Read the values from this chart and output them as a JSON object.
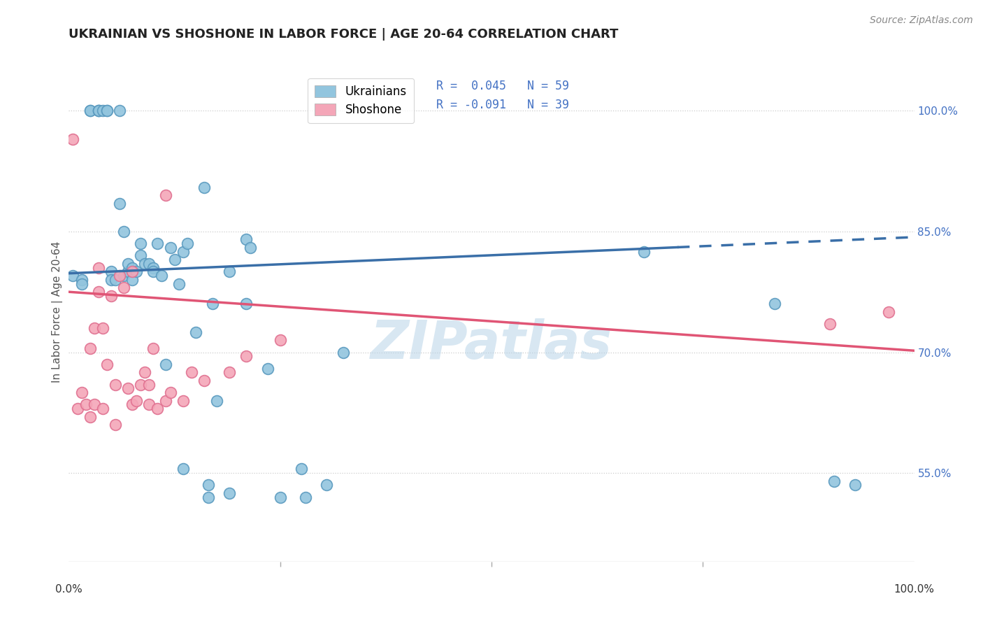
{
  "title": "UKRAINIAN VS SHOSHONE IN LABOR FORCE | AGE 20-64 CORRELATION CHART",
  "source": "Source: ZipAtlas.com",
  "ylabel": "In Labor Force | Age 20-64",
  "yticks": [
    55.0,
    70.0,
    85.0,
    100.0
  ],
  "ytick_labels": [
    "55.0%",
    "70.0%",
    "85.0%",
    "100.0%"
  ],
  "blue_color": "#92c5de",
  "pink_color": "#f4a6b8",
  "blue_edge_color": "#5a9abf",
  "pink_edge_color": "#e07090",
  "blue_line_color": "#3a6fa8",
  "pink_line_color": "#e05575",
  "watermark": "ZIPatlas",
  "blue_scatter_x": [
    0.5,
    1.5,
    1.5,
    2.5,
    2.5,
    3.5,
    3.5,
    3.5,
    4.0,
    4.5,
    4.5,
    5.0,
    5.0,
    5.5,
    6.0,
    6.0,
    6.5,
    6.5,
    7.0,
    7.0,
    7.5,
    7.5,
    8.0,
    8.5,
    8.5,
    9.0,
    9.5,
    10.0,
    10.0,
    10.5,
    11.0,
    11.5,
    12.0,
    12.5,
    13.0,
    13.5,
    13.5,
    14.0,
    15.0,
    16.0,
    16.5,
    16.5,
    17.0,
    17.5,
    19.0,
    19.0,
    21.0,
    21.0,
    21.5,
    23.5,
    25.0,
    27.5,
    28.0,
    30.5,
    32.5,
    68.0,
    83.5,
    90.5,
    93.0
  ],
  "blue_scatter_y": [
    79.5,
    79.0,
    78.5,
    100.0,
    100.0,
    100.0,
    100.0,
    100.0,
    100.0,
    100.0,
    100.0,
    80.0,
    79.0,
    79.0,
    100.0,
    88.5,
    85.0,
    79.5,
    80.0,
    81.0,
    80.5,
    79.0,
    80.0,
    83.5,
    82.0,
    81.0,
    81.0,
    80.5,
    80.0,
    83.5,
    79.5,
    68.5,
    83.0,
    81.5,
    78.5,
    82.5,
    55.5,
    83.5,
    72.5,
    90.5,
    53.5,
    52.0,
    76.0,
    64.0,
    52.5,
    80.0,
    76.0,
    84.0,
    83.0,
    68.0,
    52.0,
    55.5,
    52.0,
    53.5,
    70.0,
    82.5,
    76.0,
    54.0,
    53.5
  ],
  "pink_scatter_x": [
    0.5,
    1.0,
    1.5,
    2.0,
    2.5,
    2.5,
    3.0,
    3.0,
    3.5,
    3.5,
    4.0,
    4.0,
    4.5,
    5.0,
    5.5,
    5.5,
    6.0,
    6.5,
    7.0,
    7.5,
    7.5,
    8.0,
    8.5,
    9.0,
    9.5,
    9.5,
    10.0,
    10.5,
    11.5,
    11.5,
    12.0,
    13.5,
    14.5,
    16.0,
    19.0,
    21.0,
    25.0,
    90.0,
    97.0
  ],
  "pink_scatter_y": [
    96.5,
    63.0,
    65.0,
    63.5,
    70.5,
    62.0,
    73.0,
    63.5,
    77.5,
    80.5,
    73.0,
    63.0,
    68.5,
    77.0,
    66.0,
    61.0,
    79.5,
    78.0,
    65.5,
    63.5,
    80.0,
    64.0,
    66.0,
    67.5,
    66.0,
    63.5,
    70.5,
    63.0,
    89.5,
    64.0,
    65.0,
    64.0,
    67.5,
    66.5,
    67.5,
    69.5,
    71.5,
    73.5,
    75.0
  ],
  "blue_trend_x0": 0,
  "blue_trend_x1": 100,
  "blue_trend_y0": 79.8,
  "blue_trend_y1": 84.3,
  "blue_solid_x1": 72,
  "pink_trend_x0": 0,
  "pink_trend_x1": 100,
  "pink_trend_y0": 77.5,
  "pink_trend_y1": 70.2,
  "xlim": [
    0,
    100
  ],
  "ylim": [
    44,
    106
  ],
  "xticklabels": [
    "0.0%",
    "100.0%"
  ]
}
